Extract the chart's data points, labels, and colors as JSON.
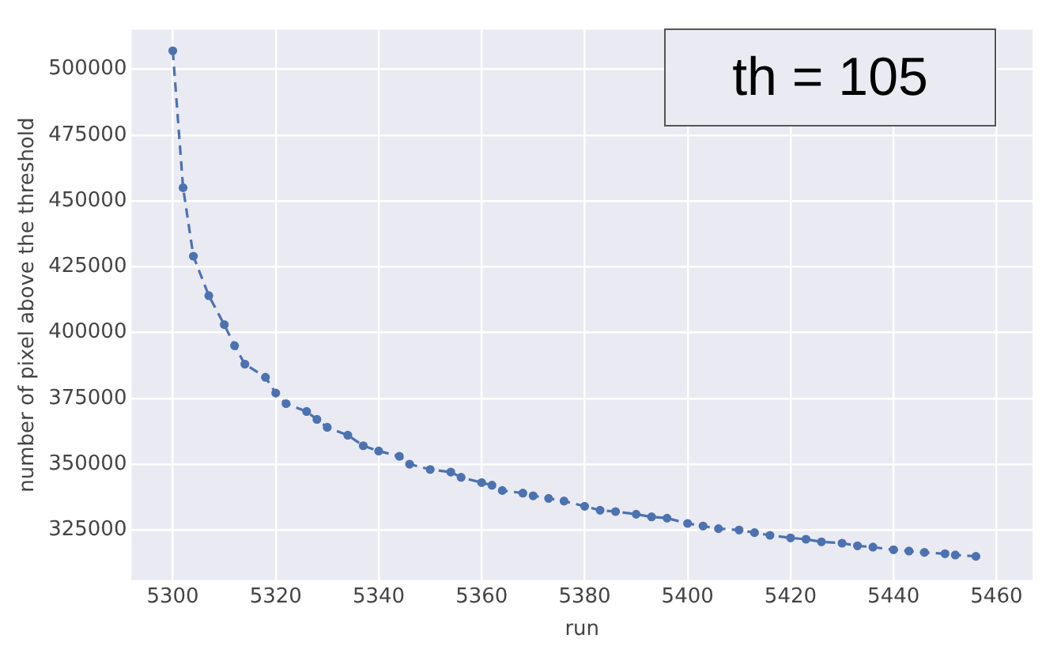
{
  "chart_data": {
    "type": "line",
    "xlabel": "run",
    "ylabel": "number of pixel above the threshold",
    "annotations": [
      "th = 105"
    ],
    "x": [
      5300,
      5302,
      5304,
      5307,
      5310,
      5312,
      5314,
      5318,
      5320,
      5322,
      5326,
      5328,
      5330,
      5334,
      5337,
      5340,
      5344,
      5346,
      5350,
      5354,
      5356,
      5360,
      5362,
      5364,
      5368,
      5370,
      5373,
      5376,
      5380,
      5383,
      5386,
      5390,
      5393,
      5396,
      5400,
      5403,
      5406,
      5410,
      5413,
      5416,
      5420,
      5423,
      5426,
      5430,
      5433,
      5436,
      5440,
      5443,
      5446,
      5450,
      5452,
      5456
    ],
    "series": [
      {
        "color": "#4c72b0",
        "values": [
          507000,
          455000,
          429000,
          414000,
          403000,
          395000,
          388000,
          383000,
          377000,
          373000,
          370000,
          367000,
          364000,
          361000,
          357000,
          355000,
          353000,
          350000,
          348000,
          347000,
          345000,
          343000,
          342000,
          340000,
          339000,
          338000,
          337000,
          336000,
          334000,
          332500,
          332000,
          331000,
          330000,
          329500,
          327500,
          326500,
          325500,
          325000,
          324000,
          323000,
          322000,
          321500,
          320500,
          320000,
          319000,
          318500,
          317500,
          317000,
          316500,
          316000,
          315500,
          315000
        ]
      }
    ],
    "xlim": [
      5292,
      5467
    ],
    "ylim": [
      306000,
      515000
    ],
    "xticks": [
      5300,
      5320,
      5340,
      5360,
      5380,
      5400,
      5420,
      5440,
      5460
    ],
    "yticks": [
      325000,
      350000,
      375000,
      400000,
      425000,
      450000,
      475000,
      500000
    ],
    "grid": true,
    "legend": false,
    "marker": "circle",
    "line_style": "dashed"
  }
}
